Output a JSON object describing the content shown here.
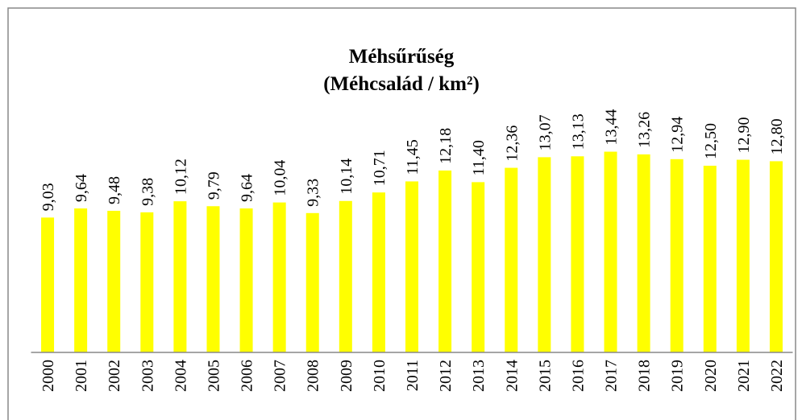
{
  "chart_data": {
    "type": "bar",
    "title": "Méhsűrűség",
    "subtitle": "(Méhcsalád / km²)",
    "categories": [
      "2000",
      "2001",
      "2002",
      "2003",
      "2004",
      "2005",
      "2006",
      "2007",
      "2008",
      "2009",
      "2010",
      "2011",
      "2012",
      "2013",
      "2014",
      "2015",
      "2016",
      "2017",
      "2018",
      "2019",
      "2020",
      "2021",
      "2022"
    ],
    "values": [
      9.03,
      9.64,
      9.48,
      9.38,
      10.12,
      9.79,
      9.64,
      10.04,
      9.33,
      10.14,
      10.71,
      11.45,
      12.18,
      11.4,
      12.36,
      13.07,
      13.13,
      13.44,
      13.26,
      12.94,
      12.5,
      12.9,
      12.8
    ],
    "value_labels": [
      "9,03",
      "9,64",
      "9,48",
      "9,38",
      "10,12",
      "9,79",
      "9,64",
      "10,04",
      "9,33",
      "10,14",
      "10,71",
      "11,45",
      "12,18",
      "11,40",
      "12,36",
      "13,07",
      "13,13",
      "13,44",
      "13,26",
      "12,94",
      "12,50",
      "12,90",
      "12,80"
    ],
    "color": "#ffff00",
    "ylim": [
      0,
      16
    ]
  }
}
